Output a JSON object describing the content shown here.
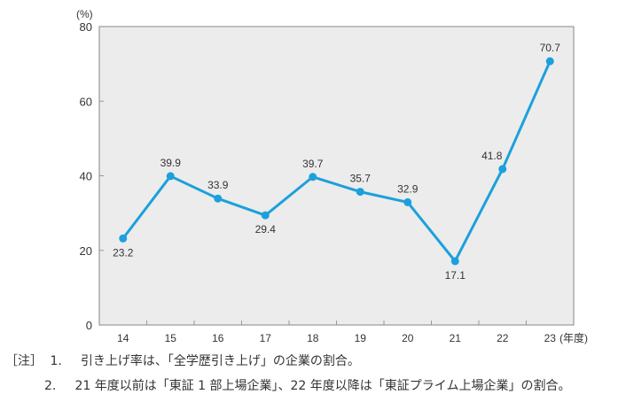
{
  "chart_data": {
    "type": "line",
    "categories": [
      "14",
      "15",
      "16",
      "17",
      "18",
      "19",
      "20",
      "21",
      "22",
      "23"
    ],
    "values": [
      23.2,
      39.9,
      33.9,
      29.4,
      39.7,
      35.7,
      32.9,
      17.1,
      41.8,
      70.7
    ],
    "value_labels": [
      "23.2",
      "39.9",
      "33.9",
      "29.4",
      "39.7",
      "35.7",
      "32.9",
      "17.1",
      "41.8",
      "70.7"
    ],
    "ylabel": "(%)",
    "xlabel": "(年度)",
    "ylim": [
      0,
      80
    ],
    "yticks": [
      "0",
      "20",
      "40",
      "60",
      "80"
    ],
    "grid": false,
    "colors": {
      "line": "#1ca0dc",
      "plot_bg": "#ececec",
      "frame": "#999999"
    }
  },
  "notes": {
    "prefix": "［注］",
    "items": [
      {
        "num": "1.",
        "text": "引き上げ率は、「全学歴引き上げ」の企業の割合。"
      },
      {
        "num": "2.",
        "text": "21 年度以前は「東証 1 部上場企業」、22 年度以降は「東証プライム上場企業」の割合。"
      }
    ]
  }
}
